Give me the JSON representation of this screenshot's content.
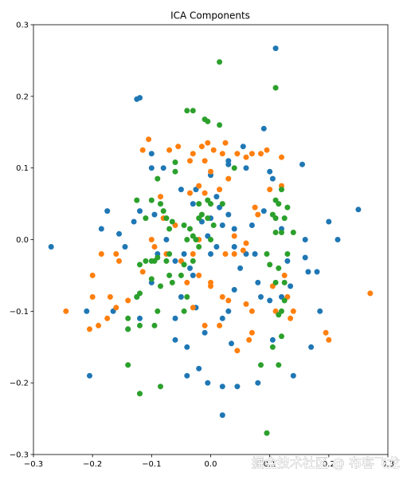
{
  "chart_data": {
    "type": "scatter",
    "title": "ICA Components",
    "xlabel": "",
    "ylabel": "",
    "xlim": [
      -0.3,
      0.3
    ],
    "ylim": [
      -0.3,
      0.3
    ],
    "x_ticks": [
      -0.3,
      -0.2,
      -0.1,
      0.0,
      0.1,
      0.2,
      0.3
    ],
    "x_tick_labels": [
      "−0.3",
      "−0.2",
      "−0.1",
      "0.0",
      "0.1",
      "0.2",
      "0.3"
    ],
    "y_ticks": [
      -0.3,
      -0.2,
      -0.1,
      0.0,
      0.1,
      0.2,
      0.3
    ],
    "y_tick_labels": [
      "−0.3",
      "−0.2",
      "−0.1",
      "0.0",
      "0.1",
      "0.2",
      "0.3"
    ],
    "grid": false,
    "legend": "none",
    "series": [
      {
        "color": "#1f77b4",
        "points": [
          [
            0.11,
            0.267
          ],
          [
            -0.12,
            0.198
          ],
          [
            -0.125,
            0.196
          ],
          [
            -0.27,
            -0.01
          ],
          [
            -0.205,
            -0.19
          ],
          [
            -0.21,
            -0.1
          ],
          [
            -0.175,
            0.04
          ],
          [
            -0.185,
            0.015
          ],
          [
            -0.155,
            0.008
          ],
          [
            -0.145,
            -0.01
          ],
          [
            0.09,
            0.155
          ],
          [
            0.055,
            0.13
          ],
          [
            0.1,
            0.095
          ],
          [
            0.105,
            0.085
          ],
          [
            0.06,
            0.1
          ],
          [
            0.03,
            0.105
          ],
          [
            -0.1,
            0.1
          ],
          [
            -0.1,
            0.12
          ],
          [
            -0.08,
            0.1
          ],
          [
            -0.05,
            0.07
          ],
          [
            0.155,
            0.105
          ],
          [
            0.25,
            0.042
          ],
          [
            0.2,
            0.025
          ],
          [
            0.215,
            0.0
          ],
          [
            0.16,
            0.0
          ],
          [
            0.16,
            -0.025
          ],
          [
            0.165,
            -0.045
          ],
          [
            0.18,
            -0.045
          ],
          [
            0.185,
            -0.1
          ],
          [
            0.17,
            -0.15
          ],
          [
            0.12,
            -0.08
          ],
          [
            0.08,
            -0.06
          ],
          [
            0.06,
            -0.02
          ],
          [
            0.04,
            -0.01
          ],
          [
            0.01,
            -0.01
          ],
          [
            -0.005,
            0.005
          ],
          [
            -0.03,
            -0.05
          ],
          [
            -0.045,
            -0.02
          ],
          [
            -0.06,
            -0.03
          ],
          [
            -0.075,
            0.0
          ],
          [
            0.0,
            0.09
          ],
          [
            0.01,
            0.06
          ],
          [
            -0.025,
            0.07
          ],
          [
            -0.03,
            0.05
          ],
          [
            0.03,
            0.035
          ],
          [
            0.04,
            0.015
          ],
          [
            0.05,
            -0.04
          ],
          [
            0.04,
            -0.07
          ],
          [
            0.03,
            -0.1
          ],
          [
            0.02,
            -0.11
          ],
          [
            0.035,
            -0.145
          ],
          [
            -0.01,
            -0.13
          ],
          [
            -0.025,
            -0.095
          ],
          [
            -0.06,
            -0.11
          ],
          [
            -0.06,
            -0.14
          ],
          [
            -0.04,
            -0.19
          ],
          [
            -0.02,
            -0.18
          ],
          [
            -0.005,
            -0.2
          ],
          [
            0.02,
            -0.205
          ],
          [
            0.045,
            -0.205
          ],
          [
            0.02,
            -0.245
          ],
          [
            0.1,
            -0.085
          ],
          [
            0.105,
            -0.14
          ],
          [
            0.14,
            -0.19
          ],
          [
            0.08,
            -0.2
          ],
          [
            -0.125,
            -0.08
          ],
          [
            -0.12,
            -0.11
          ],
          [
            -0.14,
            -0.125
          ],
          [
            -0.165,
            -0.1
          ],
          [
            0.0,
            0.03
          ],
          [
            -0.015,
            0.025
          ],
          [
            0.02,
            0.02
          ],
          [
            -0.1,
            -0.06
          ],
          [
            -0.09,
            -0.02
          ],
          [
            0.07,
            0.02
          ],
          [
            0.09,
            0.04
          ],
          [
            0.12,
            0.015
          ],
          [
            0.13,
            -0.03
          ],
          [
            0.135,
            -0.065
          ],
          [
            -0.12,
            0.04
          ],
          [
            -0.13,
            0.025
          ],
          [
            -0.095,
            0.035
          ],
          [
            -0.05,
            -0.08
          ],
          [
            -0.04,
            -0.15
          ],
          [
            0.075,
            -0.02
          ],
          [
            0.085,
            -0.08
          ],
          [
            0.0,
            -0.02
          ],
          [
            -0.035,
            -0.04
          ],
          [
            0.015,
            0.045
          ],
          [
            0.03,
            0.11
          ]
        ]
      },
      {
        "color": "#ff7f0e",
        "points": [
          [
            -0.105,
            0.14
          ],
          [
            -0.115,
            0.125
          ],
          [
            -0.07,
            0.125
          ],
          [
            -0.055,
            0.13
          ],
          [
            -0.03,
            0.12
          ],
          [
            -0.035,
            0.11
          ],
          [
            -0.015,
            0.13
          ],
          [
            -0.005,
            0.135
          ],
          [
            0.005,
            0.125
          ],
          [
            0.02,
            0.12
          ],
          [
            0.025,
            0.135
          ],
          [
            0.045,
            0.12
          ],
          [
            0.06,
            0.115
          ],
          [
            0.07,
            0.12
          ],
          [
            0.085,
            0.12
          ],
          [
            0.095,
            0.125
          ],
          [
            0.12,
            0.115
          ],
          [
            -0.01,
            0.11
          ],
          [
            0.0,
            0.095
          ],
          [
            -0.02,
            0.075
          ],
          [
            -0.035,
            0.065
          ],
          [
            0.03,
            0.085
          ],
          [
            0.075,
            0.045
          ],
          [
            0.08,
            0.035
          ],
          [
            0.04,
            0.005
          ],
          [
            -0.02,
            0.0
          ],
          [
            -0.03,
            -0.02
          ],
          [
            -0.05,
            -0.03
          ],
          [
            -0.02,
            -0.05
          ],
          [
            0.0,
            -0.065
          ],
          [
            0.02,
            -0.08
          ],
          [
            0.03,
            -0.085
          ],
          [
            0.06,
            -0.09
          ],
          [
            0.07,
            -0.1
          ],
          [
            0.07,
            -0.13
          ],
          [
            0.065,
            -0.14
          ],
          [
            0.045,
            -0.155
          ],
          [
            0.015,
            -0.12
          ],
          [
            -0.01,
            -0.12
          ],
          [
            -0.03,
            -0.095
          ],
          [
            -0.04,
            -0.06
          ],
          [
            0.0,
            -0.06
          ],
          [
            0.025,
            -0.02
          ],
          [
            0.04,
            -0.02
          ],
          [
            -0.075,
            -0.02
          ],
          [
            -0.095,
            -0.01
          ],
          [
            -0.1,
            0.0
          ],
          [
            -0.115,
            -0.045
          ],
          [
            -0.14,
            -0.085
          ],
          [
            -0.16,
            -0.095
          ],
          [
            -0.17,
            -0.08
          ],
          [
            -0.175,
            -0.11
          ],
          [
            -0.19,
            -0.12
          ],
          [
            -0.205,
            -0.125
          ],
          [
            -0.2,
            -0.08
          ],
          [
            -0.2,
            -0.05
          ],
          [
            -0.185,
            -0.02
          ],
          [
            -0.16,
            -0.02
          ],
          [
            -0.155,
            -0.03
          ],
          [
            -0.245,
            -0.1
          ],
          [
            0.105,
            -0.065
          ],
          [
            0.11,
            -0.1
          ],
          [
            0.13,
            -0.08
          ],
          [
            0.135,
            -0.11
          ],
          [
            0.14,
            -0.1
          ],
          [
            0.125,
            -0.05
          ],
          [
            0.06,
            -0.005
          ],
          [
            0.055,
            -0.015
          ],
          [
            0.2,
            -0.14
          ],
          [
            0.195,
            -0.13
          ],
          [
            0.27,
            -0.075
          ],
          [
            0.12,
            0.075
          ],
          [
            0.1,
            0.07
          ],
          [
            -0.085,
            0.06
          ],
          [
            -0.08,
            0.03
          ],
          [
            -0.06,
            0.02
          ],
          [
            0.015,
            0.07
          ],
          [
            -0.01,
            0.065
          ]
        ]
      },
      {
        "color": "#2ca02c",
        "points": [
          [
            0.015,
            0.248
          ],
          [
            0.11,
            0.212
          ],
          [
            -0.04,
            0.18
          ],
          [
            -0.03,
            0.18
          ],
          [
            -0.01,
            0.168
          ],
          [
            -0.005,
            0.165
          ],
          [
            0.015,
            0.16
          ],
          [
            -0.06,
            0.108
          ],
          [
            -0.06,
            0.095
          ],
          [
            -0.09,
            0.085
          ],
          [
            0.04,
            0.1
          ],
          [
            0.12,
            0.07
          ],
          [
            0.11,
            0.055
          ],
          [
            0.115,
            0.05
          ],
          [
            0.13,
            0.045
          ],
          [
            0.125,
            0.03
          ],
          [
            0.11,
            0.03
          ],
          [
            0.12,
            0.01
          ],
          [
            0.11,
            0.01
          ],
          [
            0.14,
            0.01
          ],
          [
            0.095,
            -0.02
          ],
          [
            0.13,
            -0.02
          ],
          [
            0.1,
            -0.035
          ],
          [
            0.115,
            -0.04
          ],
          [
            0.11,
            -0.06
          ],
          [
            0.125,
            -0.06
          ],
          [
            0.125,
            -0.085
          ],
          [
            0.12,
            -0.1
          ],
          [
            0.115,
            -0.105
          ],
          [
            0.12,
            -0.135
          ],
          [
            0.105,
            -0.15
          ],
          [
            0.115,
            -0.175
          ],
          [
            0.085,
            -0.175
          ],
          [
            0.095,
            -0.27
          ],
          [
            -0.125,
            0.055
          ],
          [
            -0.1,
            0.055
          ],
          [
            -0.085,
            0.05
          ],
          [
            -0.08,
            0.04
          ],
          [
            -0.075,
            0.03
          ],
          [
            -0.07,
            0.015
          ],
          [
            -0.065,
            0.025
          ],
          [
            -0.045,
            0.02
          ],
          [
            -0.035,
            0.015
          ],
          [
            -0.03,
            0.005
          ],
          [
            -0.02,
            0.03
          ],
          [
            -0.015,
            0.035
          ],
          [
            -0.005,
            0.03
          ],
          [
            0.0,
            0.05
          ],
          [
            -0.005,
            0.055
          ],
          [
            0.02,
            0.05
          ],
          [
            -0.04,
            0.0
          ],
          [
            -0.025,
            0.0
          ],
          [
            -0.02,
            -0.01
          ],
          [
            -0.03,
            -0.03
          ],
          [
            -0.045,
            -0.035
          ],
          [
            -0.07,
            -0.02
          ],
          [
            -0.075,
            -0.03
          ],
          [
            -0.09,
            -0.025
          ],
          [
            -0.095,
            -0.03
          ],
          [
            -0.1,
            -0.03
          ],
          [
            -0.11,
            -0.03
          ],
          [
            -0.12,
            -0.035
          ],
          [
            -0.1,
            -0.055
          ],
          [
            -0.07,
            -0.05
          ],
          [
            -0.065,
            -0.06
          ],
          [
            -0.085,
            -0.065
          ],
          [
            -0.09,
            -0.1
          ],
          [
            -0.125,
            -0.08
          ],
          [
            -0.12,
            -0.075
          ],
          [
            -0.14,
            -0.125
          ],
          [
            -0.12,
            -0.12
          ],
          [
            -0.095,
            -0.12
          ],
          [
            -0.14,
            -0.11
          ],
          [
            -0.14,
            -0.175
          ],
          [
            -0.12,
            -0.215
          ],
          [
            -0.085,
            -0.205
          ],
          [
            -0.045,
            -0.1
          ],
          [
            -0.04,
            -0.08
          ],
          [
            -0.05,
            -0.05
          ],
          [
            0.0,
            0.0
          ],
          [
            0.005,
            0.02
          ],
          [
            -0.02,
            0.05
          ],
          [
            -0.11,
            0.03
          ],
          [
            0.105,
            0.035
          ]
        ]
      }
    ],
    "marker_radius": 3.5
  },
  "watermark": "掘金技术社区 @ 布客飞龙"
}
